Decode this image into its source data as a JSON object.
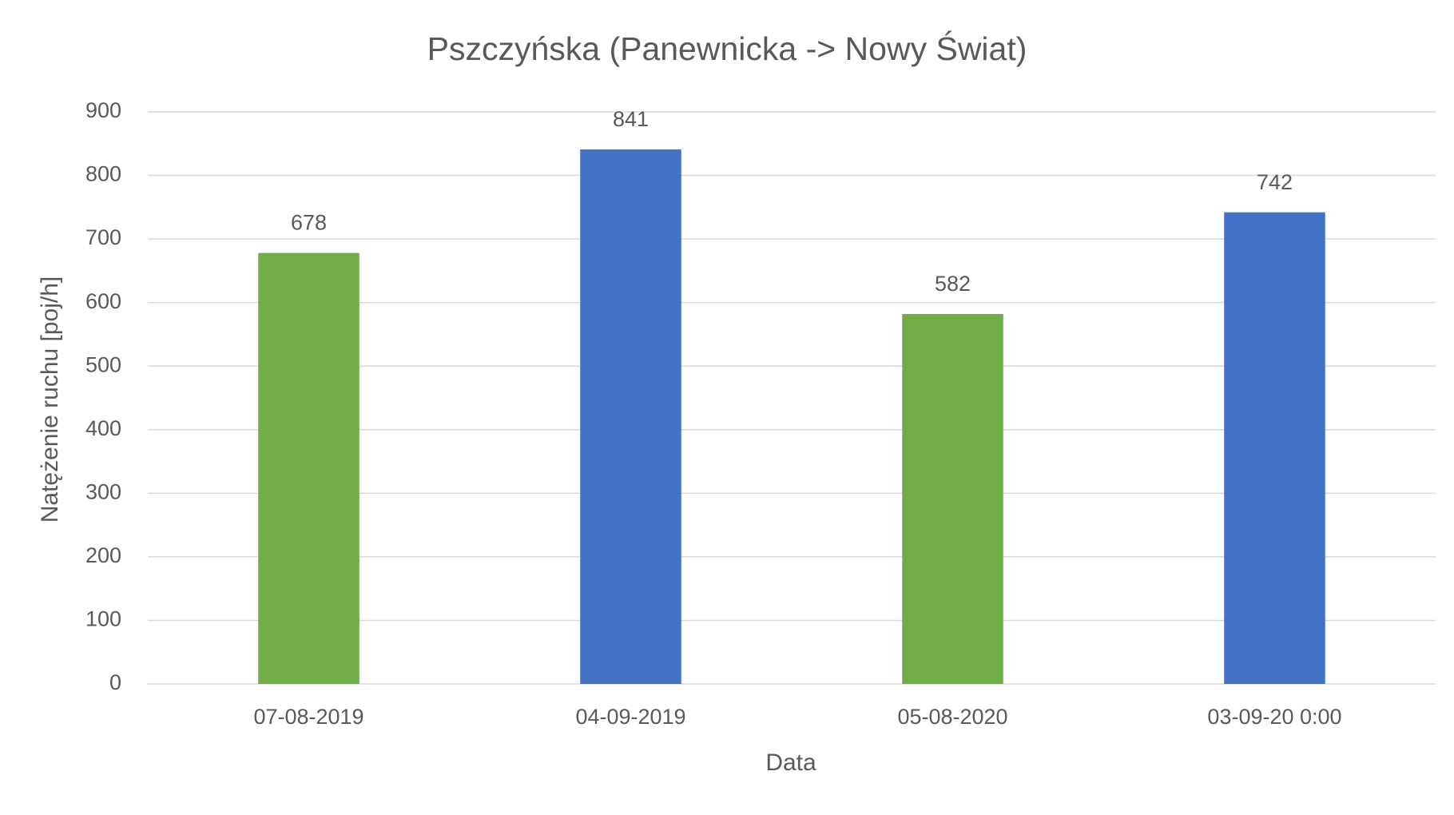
{
  "chart_data": {
    "type": "bar",
    "title": "Pszczyńska (Panewnicka -> Nowy Świat)",
    "x_label": "Data",
    "y_label": "Natężenie ruchu [poj/h]",
    "categories": [
      "07-08-2019",
      "04-09-2019",
      "05-08-2020",
      "03-09-20 0:00"
    ],
    "values": [
      678,
      841,
      582,
      742
    ],
    "colors": [
      "#70ad47",
      "#4472c4",
      "#70ad47",
      "#4472c4"
    ],
    "ylim": [
      0,
      900
    ],
    "yticks": [
      0,
      100,
      200,
      300,
      400,
      500,
      600,
      700,
      800,
      900
    ],
    "grid": true,
    "data_labels": true
  }
}
